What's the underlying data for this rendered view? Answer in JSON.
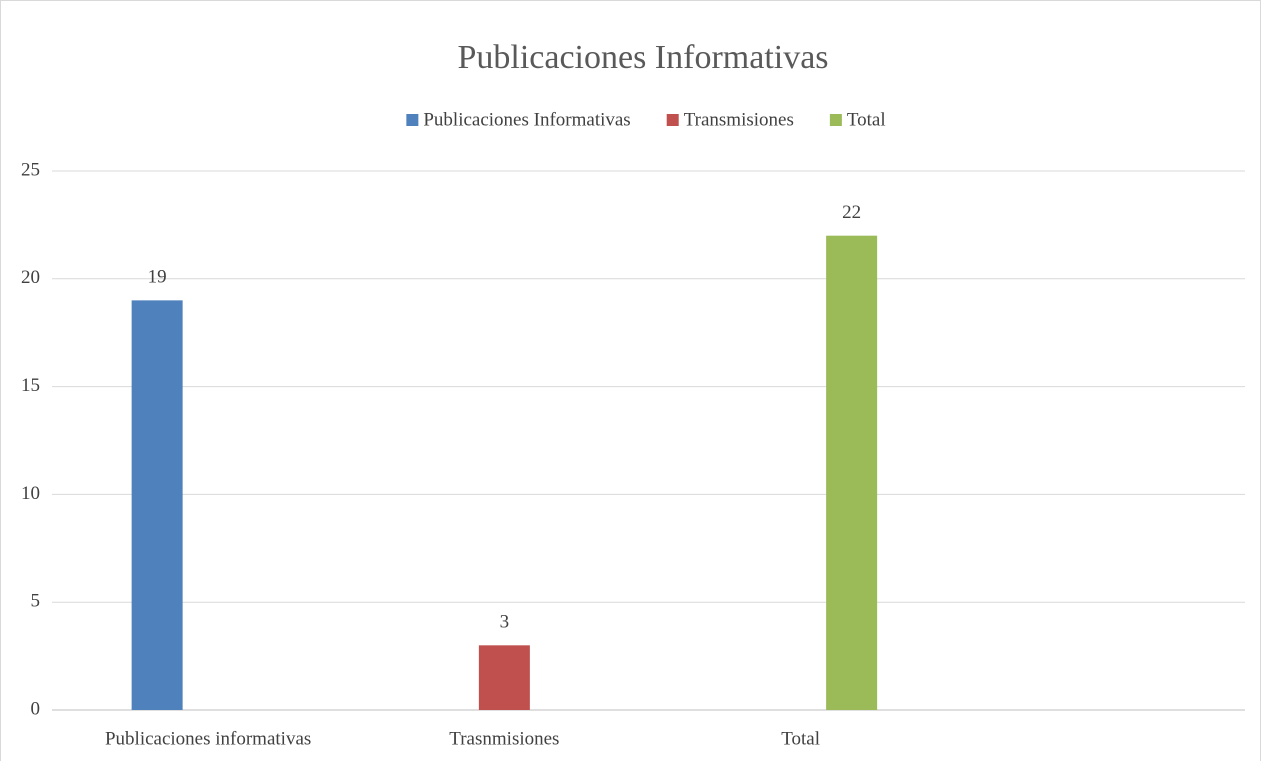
{
  "chart_data": {
    "type": "bar",
    "title": "Publicaciones Informativas",
    "categories": [
      "Publicaciones informativas",
      "Trasnmisiones",
      "Total",
      null
    ],
    "series": [
      {
        "name": "Publicaciones Informativas",
        "color": "#4f81bd",
        "values": [
          19,
          null,
          null,
          null
        ]
      },
      {
        "name": "Transmisiones",
        "color": "#c0504d",
        "values": [
          null,
          3,
          null,
          null
        ]
      },
      {
        "name": "Total",
        "color": "#9bbb59",
        "values": [
          null,
          null,
          22,
          null
        ]
      }
    ],
    "ylim": [
      0,
      25
    ],
    "yticks": [
      0,
      5,
      10,
      15,
      20,
      25
    ],
    "grid": true,
    "legend": "top"
  }
}
